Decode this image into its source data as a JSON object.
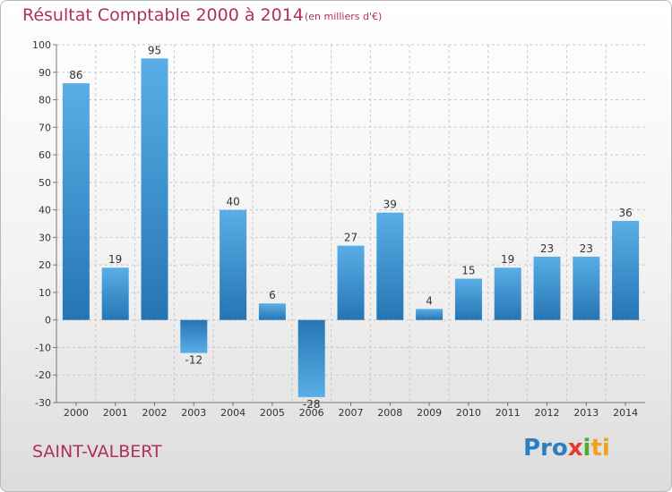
{
  "header": {
    "title": "Résultat Comptable 2000 à 2014",
    "unit": "(en milliers d'€)"
  },
  "footer": {
    "commune": "SAINT-VALBERT",
    "logo": [
      "Pro",
      "x",
      "i",
      "ti"
    ]
  },
  "colors": {
    "title": "#b0305c",
    "bar_light": "#5aaee6",
    "bar_dark": "#2575b4",
    "grid": "#c8c8c8"
  },
  "chart_data": {
    "type": "bar",
    "categories": [
      "2000",
      "2001",
      "2002",
      "2003",
      "2004",
      "2005",
      "2006",
      "2007",
      "2008",
      "2009",
      "2010",
      "2011",
      "2012",
      "2013",
      "2014"
    ],
    "values": [
      86,
      19,
      95,
      -12,
      40,
      6,
      -28,
      27,
      39,
      4,
      15,
      19,
      23,
      23,
      36
    ],
    "title": "Résultat Comptable 2000 à 2014",
    "ylim": [
      -30,
      100
    ],
    "yticks": [
      -30,
      -20,
      -10,
      0,
      10,
      20,
      30,
      40,
      50,
      60,
      70,
      80,
      90,
      100
    ],
    "grid": "horizontal dashed",
    "legend": "none"
  }
}
